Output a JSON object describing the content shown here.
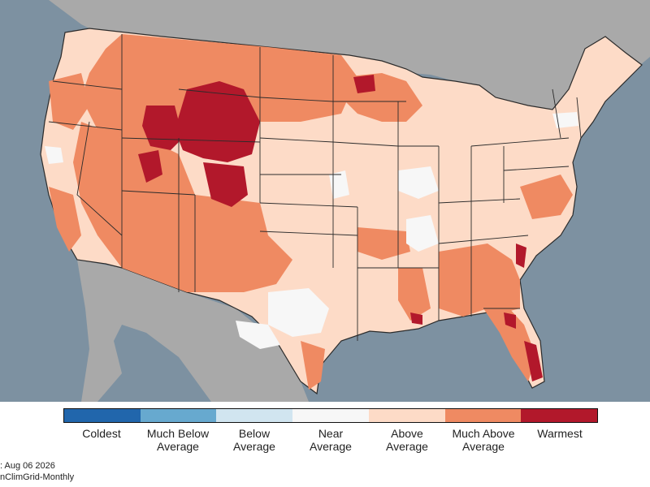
{
  "colors": {
    "ocean": "#7d91a1",
    "land_outside": "#a9a9a9",
    "border": "#2b2b2b"
  },
  "legend": {
    "categories": [
      {
        "line1": "Coldest",
        "line2": "",
        "color": "#2166ac"
      },
      {
        "line1": "Much Below",
        "line2": "Average",
        "color": "#67a9cf"
      },
      {
        "line1": "Below",
        "line2": "Average",
        "color": "#d1e5f0"
      },
      {
        "line1": "Near",
        "line2": "Average",
        "color": "#f7f7f7"
      },
      {
        "line1": "Above",
        "line2": "Average",
        "color": "#fddbc7"
      },
      {
        "line1": "Much Above",
        "line2": "Average",
        "color": "#ef8a62"
      },
      {
        "line1": "Warmest",
        "line2": "",
        "color": "#b2182b"
      }
    ]
  },
  "footer": {
    "line1": ": Aug 06 2026",
    "line2": "nClimGrid-Monthly"
  }
}
